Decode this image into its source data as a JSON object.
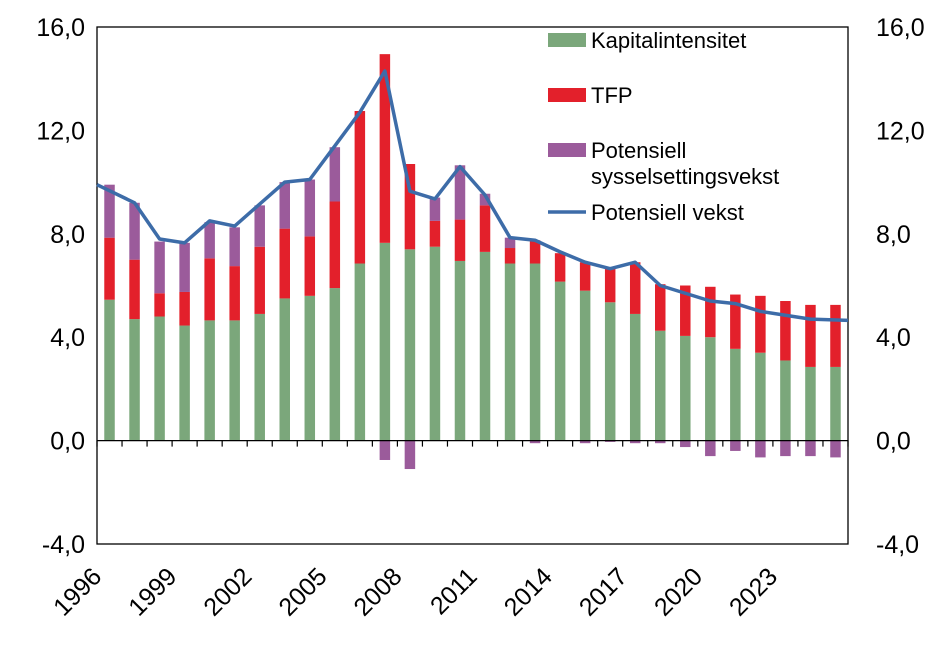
{
  "chart_data": {
    "type": "bar",
    "stacked": true,
    "categories": [
      1996,
      1997,
      1998,
      1999,
      2000,
      2001,
      2002,
      2003,
      2004,
      2005,
      2006,
      2007,
      2008,
      2009,
      2010,
      2011,
      2012,
      2013,
      2014,
      2015,
      2016,
      2017,
      2018,
      2019,
      2020,
      2021,
      2022,
      2023,
      2024,
      2025
    ],
    "x_tick_labels": [
      "1996",
      "1999",
      "2002",
      "2005",
      "2008",
      "2011",
      "2014",
      "2017",
      "2020",
      "2023"
    ],
    "y_tick_labels": [
      "-4,0",
      "0,0",
      "4,0",
      "8,0",
      "12,0",
      "16,0"
    ],
    "ylim": [
      -4,
      16
    ],
    "secondary_ylim": [
      -4,
      16
    ],
    "grid": false,
    "legend_position": "top-right",
    "series": [
      {
        "name": "Kapitalintensitet",
        "kind": "bar",
        "color": "#7BA77B",
        "values": [
          5.45,
          4.7,
          4.8,
          4.45,
          4.65,
          4.65,
          4.9,
          5.5,
          5.6,
          5.9,
          6.85,
          7.65,
          7.4,
          7.5,
          6.95,
          7.3,
          6.85,
          6.85,
          6.15,
          5.8,
          5.35,
          4.9,
          4.25,
          4.05,
          4.0,
          3.55,
          3.4,
          3.1,
          2.85,
          2.85
        ]
      },
      {
        "name": "TFP",
        "kind": "bar",
        "color": "#E3202B",
        "values": [
          2.4,
          2.3,
          0.9,
          1.3,
          2.4,
          2.1,
          2.6,
          2.7,
          2.3,
          3.35,
          5.9,
          7.3,
          3.3,
          1.0,
          1.6,
          1.8,
          0.6,
          0.9,
          1.1,
          1.1,
          1.3,
          2.0,
          1.8,
          1.95,
          1.95,
          2.1,
          2.2,
          2.3,
          2.4,
          2.4
        ]
      },
      {
        "name": "Potensiell sysselsettingsvekst",
        "kind": "bar",
        "color": "#9B5B9B",
        "values": [
          2.05,
          2.2,
          2.0,
          1.9,
          1.4,
          1.5,
          1.6,
          1.8,
          2.2,
          2.1,
          0.0,
          -0.75,
          -1.1,
          0.9,
          2.1,
          0.45,
          0.4,
          -0.1,
          0.0,
          -0.1,
          -0.05,
          -0.1,
          -0.1,
          -0.25,
          -0.6,
          -0.4,
          -0.65,
          -0.6,
          -0.6,
          -0.65
        ]
      },
      {
        "name": "Potensiell vekst",
        "kind": "line",
        "color": "#3D6CA8",
        "values": [
          9.9,
          9.2,
          7.8,
          7.65,
          8.5,
          8.3,
          9.15,
          10.0,
          10.1,
          11.4,
          12.7,
          14.3,
          9.65,
          9.35,
          10.6,
          9.5,
          7.85,
          7.75,
          7.3,
          6.9,
          6.65,
          6.9,
          6.0,
          5.7,
          5.4,
          5.3,
          5.0,
          4.85,
          4.7,
          4.65
        ]
      }
    ]
  }
}
